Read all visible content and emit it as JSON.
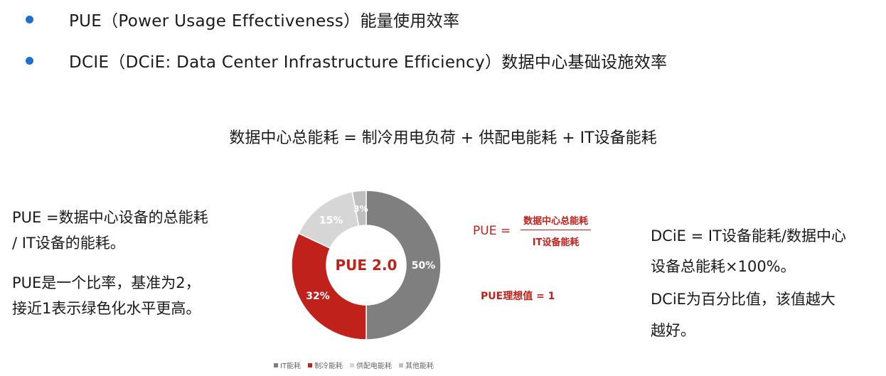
{
  "bullets": [
    "PUE（Power Usage Effectiveness）能量使用效率",
    "DCIE（DCiE: Data Center Infrastructure Efficiency）数据中心基础设施效率"
  ],
  "formula_main": "数据中心总能耗 = 制冷用电负荷 + 供配电能耗 + IT设备能耗",
  "left_text": [
    "PUE =数据中心设备的总能耗",
    "/ IT设备的能耗。",
    "PUE是一个比率，基准为2，",
    "接近1表示绿色化水平更高。"
  ],
  "right_text": [
    "DCiE = IT设备能耗/数据中心",
    "设备总能耗×100%。",
    "DCiE为百分比值，该值越大",
    "越好。"
  ],
  "pue_formula": {
    "prefix": "PUE =",
    "numerator": "数据中心总能耗",
    "denominator": "IT设备能耗"
  },
  "pue_ideal": "PUE理想值 = 1",
  "chart_data": {
    "type": "pie",
    "center_label": "PUE 2.0",
    "categories": [
      "IT能耗",
      "制冷能耗",
      "供配电能耗",
      "其他能耗"
    ],
    "values": [
      50,
      32,
      15,
      3
    ],
    "data_labels": [
      "50%",
      "32%",
      "15%",
      "3%"
    ],
    "colors": [
      "#7f7f7f",
      "#c0211a",
      "#d6d6d6",
      "#bfbfbf"
    ],
    "label_colors": [
      "#ffffff",
      "#ffffff",
      "#ffffff",
      "#ffffff"
    ],
    "legend_position": "bottom"
  }
}
